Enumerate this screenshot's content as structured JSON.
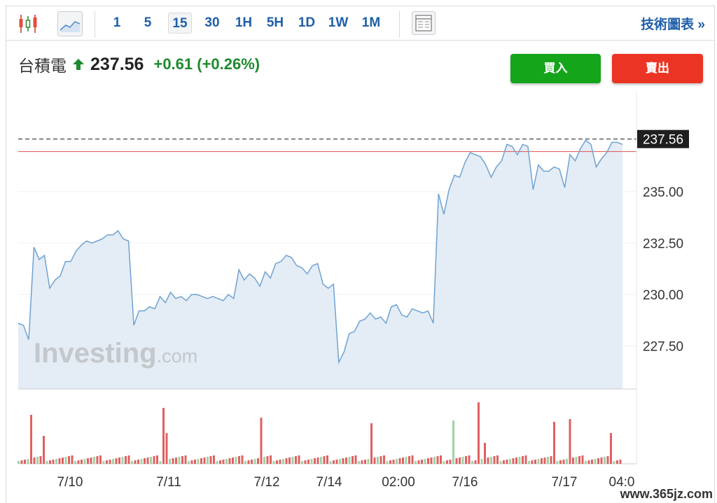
{
  "toolbar": {
    "candle_icon": "candlestick-icon",
    "area_icon": "area-chart-icon",
    "timeframes": [
      "1",
      "5",
      "15",
      "30",
      "1H",
      "5H",
      "1D",
      "1W",
      "1M"
    ],
    "active_timeframe": "15",
    "layout_icon": "layout-icon",
    "tech_chart_label": "技術圖表 »"
  },
  "quote": {
    "symbol": "台積電",
    "price": "237.56",
    "change": "+0.61 (+0.26%)",
    "up_color": "#1e8a2e"
  },
  "actions": {
    "buy": "買入",
    "sell": "賣出"
  },
  "logo": {
    "text": "Investing",
    "suffix": ".com"
  },
  "watermark": "www.365jz.com",
  "chart_data": {
    "type": "area",
    "y_ticks": [
      "227.50",
      "230.00",
      "232.50",
      "235.00"
    ],
    "ylim": [
      225.4,
      239.9
    ],
    "last_price_label": "237.56",
    "last_price": 237.56,
    "reference_price": 236.95,
    "x_tick_labels": [
      "7/10",
      "7/11",
      "7/12",
      "7/14",
      "02:00",
      "7/16",
      "7/17",
      "04:0"
    ],
    "prices": [
      228.6,
      228.5,
      227.8,
      232.3,
      231.7,
      231.9,
      230.3,
      230.7,
      230.9,
      231.6,
      231.6,
      232.1,
      232.4,
      232.6,
      232.5,
      232.6,
      232.7,
      232.9,
      232.9,
      233.1,
      232.7,
      232.6,
      228.5,
      229.2,
      229.2,
      229.4,
      229.3,
      229.9,
      229.6,
      230.1,
      229.8,
      229.9,
      229.7,
      230.0,
      230.0,
      229.9,
      229.8,
      229.9,
      229.8,
      229.7,
      230.0,
      229.8,
      231.2,
      230.7,
      231.0,
      230.8,
      230.4,
      231.1,
      230.8,
      231.5,
      231.6,
      231.9,
      231.8,
      231.4,
      231.3,
      231.0,
      231.4,
      231.5,
      230.5,
      230.3,
      230.5,
      226.7,
      227.2,
      228.1,
      228.2,
      228.7,
      228.8,
      229.1,
      228.8,
      228.9,
      228.6,
      229.4,
      229.5,
      229.0,
      228.9,
      229.3,
      229.2,
      229.1,
      229.2,
      228.6,
      234.9,
      233.9,
      235.1,
      235.8,
      235.7,
      236.4,
      236.9,
      236.8,
      236.7,
      236.3,
      235.7,
      236.2,
      236.5,
      237.3,
      237.2,
      236.8,
      237.3,
      237.2,
      235.1,
      236.3,
      236.0,
      236.0,
      236.2,
      236.1,
      235.2,
      236.8,
      236.5,
      237.1,
      237.5,
      237.3,
      236.2,
      236.6,
      236.9,
      237.4,
      237.4,
      237.3
    ]
  }
}
